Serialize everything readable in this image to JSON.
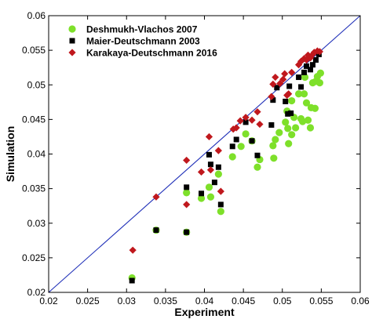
{
  "chart_data": {
    "type": "scatter",
    "xlabel": "Experiment",
    "ylabel": "Simulation",
    "xlim": [
      0.02,
      0.06
    ],
    "ylim": [
      0.02,
      0.06
    ],
    "x_ticks": [
      "0.02",
      "0.025",
      "0.03",
      "0.035",
      "0.04",
      "0.045",
      "0.05",
      "0.055",
      "0.06"
    ],
    "y_ticks": [
      "0.02",
      "0.025",
      "0.03",
      "0.035",
      "0.04",
      "0.045",
      "0.05",
      "0.055",
      "0.06"
    ],
    "grid": false,
    "legend_position": "top-left",
    "reference_line": {
      "x": [
        0.02,
        0.06
      ],
      "y": [
        0.02,
        0.06
      ],
      "color": "#1f2fb8"
    },
    "series": [
      {
        "name": "Deshmukh-Vlachos 2007",
        "marker": "circle",
        "color": "#7ee02a",
        "points": [
          [
            0.0307,
            0.0221
          ],
          [
            0.0338,
            0.029
          ],
          [
            0.0377,
            0.0287
          ],
          [
            0.0377,
            0.0344
          ],
          [
            0.0396,
            0.0336
          ],
          [
            0.0406,
            0.0352
          ],
          [
            0.0408,
            0.0338
          ],
          [
            0.0418,
            0.0371
          ],
          [
            0.0421,
            0.0317
          ],
          [
            0.0436,
            0.0396
          ],
          [
            0.0447,
            0.0411
          ],
          [
            0.0453,
            0.0429
          ],
          [
            0.0461,
            0.0419
          ],
          [
            0.0468,
            0.0381
          ],
          [
            0.0471,
            0.0392
          ],
          [
            0.0488,
            0.0412
          ],
          [
            0.0491,
            0.0421
          ],
          [
            0.0489,
            0.0394
          ],
          [
            0.0496,
            0.0431
          ],
          [
            0.0504,
            0.0446
          ],
          [
            0.0506,
            0.0462
          ],
          [
            0.0507,
            0.0437
          ],
          [
            0.0508,
            0.0415
          ],
          [
            0.0512,
            0.0428
          ],
          [
            0.0515,
            0.0453
          ],
          [
            0.0512,
            0.0477
          ],
          [
            0.0517,
            0.0438
          ],
          [
            0.0521,
            0.0487
          ],
          [
            0.0524,
            0.0451
          ],
          [
            0.0526,
            0.0447
          ],
          [
            0.0528,
            0.0487
          ],
          [
            0.0531,
            0.0474
          ],
          [
            0.0529,
            0.0511
          ],
          [
            0.0533,
            0.0449
          ],
          [
            0.0536,
            0.0438
          ],
          [
            0.0537,
            0.0467
          ],
          [
            0.0539,
            0.0503
          ],
          [
            0.0542,
            0.0466
          ],
          [
            0.0543,
            0.0505
          ],
          [
            0.0545,
            0.0512
          ],
          [
            0.0548,
            0.0503
          ],
          [
            0.0549,
            0.0517
          ]
        ]
      },
      {
        "name": "Maier-Deutschmann 2003",
        "marker": "square",
        "color": "#000000",
        "points": [
          [
            0.0307,
            0.0217
          ],
          [
            0.0338,
            0.029
          ],
          [
            0.0377,
            0.0287
          ],
          [
            0.0377,
            0.0352
          ],
          [
            0.0396,
            0.0343
          ],
          [
            0.0406,
            0.0399
          ],
          [
            0.0408,
            0.0385
          ],
          [
            0.0413,
            0.0359
          ],
          [
            0.0418,
            0.0381
          ],
          [
            0.0421,
            0.0327
          ],
          [
            0.0436,
            0.0411
          ],
          [
            0.0441,
            0.0421
          ],
          [
            0.0453,
            0.0446
          ],
          [
            0.0461,
            0.0419
          ],
          [
            0.0468,
            0.0398
          ],
          [
            0.0486,
            0.0442
          ],
          [
            0.0488,
            0.0478
          ],
          [
            0.0493,
            0.0496
          ],
          [
            0.0504,
            0.0476
          ],
          [
            0.0507,
            0.0458
          ],
          [
            0.0509,
            0.0498
          ],
          [
            0.0511,
            0.0459
          ],
          [
            0.0521,
            0.0511
          ],
          [
            0.0524,
            0.0497
          ],
          [
            0.0528,
            0.0518
          ],
          [
            0.0531,
            0.0527
          ],
          [
            0.0536,
            0.0522
          ],
          [
            0.0539,
            0.0529
          ],
          [
            0.0543,
            0.0536
          ],
          [
            0.0547,
            0.0544
          ]
        ]
      },
      {
        "name": "Karakaya-Deutschmann 2016",
        "marker": "diamond",
        "color": "#c0181d",
        "points": [
          [
            0.0308,
            0.0261
          ],
          [
            0.0338,
            0.0338
          ],
          [
            0.0377,
            0.0327
          ],
          [
            0.0377,
            0.0391
          ],
          [
            0.0396,
            0.0374
          ],
          [
            0.0406,
            0.0425
          ],
          [
            0.0408,
            0.0377
          ],
          [
            0.0418,
            0.0405
          ],
          [
            0.0421,
            0.0346
          ],
          [
            0.0437,
            0.0436
          ],
          [
            0.0441,
            0.0438
          ],
          [
            0.0446,
            0.0448
          ],
          [
            0.0453,
            0.0453
          ],
          [
            0.0461,
            0.0449
          ],
          [
            0.0468,
            0.0461
          ],
          [
            0.0471,
            0.0443
          ],
          [
            0.0486,
            0.0483
          ],
          [
            0.0488,
            0.0501
          ],
          [
            0.0491,
            0.0511
          ],
          [
            0.0497,
            0.0502
          ],
          [
            0.0501,
            0.0508
          ],
          [
            0.0503,
            0.0516
          ],
          [
            0.0506,
            0.0485
          ],
          [
            0.0508,
            0.0487
          ],
          [
            0.0512,
            0.0518
          ],
          [
            0.0521,
            0.0529
          ],
          [
            0.0524,
            0.0534
          ],
          [
            0.0528,
            0.0538
          ],
          [
            0.0531,
            0.0536
          ],
          [
            0.0533,
            0.0543
          ],
          [
            0.0536,
            0.0539
          ],
          [
            0.0539,
            0.0544
          ],
          [
            0.0541,
            0.0547
          ],
          [
            0.0545,
            0.0549
          ],
          [
            0.0548,
            0.0548
          ]
        ]
      }
    ]
  }
}
